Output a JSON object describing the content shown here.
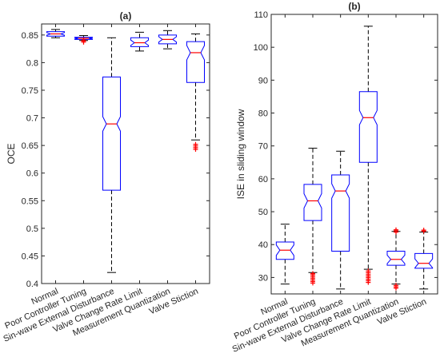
{
  "chart_data": [
    {
      "type": "box",
      "title": "(a)",
      "xlabel": "",
      "ylabel": "OCE",
      "ylim": [
        0.4,
        0.87
      ],
      "yticks": [
        0.4,
        0.45,
        0.5,
        0.55,
        0.6,
        0.65,
        0.7,
        0.75,
        0.8,
        0.85
      ],
      "ytick_labels": [
        "0.4",
        "0.45",
        "0.5",
        "0.55",
        "0.6",
        "0.65",
        "0.7",
        "0.75",
        "0.8",
        "0.85"
      ],
      "notched": true,
      "categories": [
        "Normal",
        "Poor Controller Tuning",
        "Sin-wave External Disturbance",
        "Valve Change Rate Limit",
        "Measurement Quantization",
        "Valve Stiction"
      ],
      "boxes": [
        {
          "whisker_low": 0.845,
          "q1": 0.848,
          "median": 0.852,
          "q3": 0.856,
          "whisker_high": 0.86,
          "outliers": []
        },
        {
          "whisker_low": 0.84,
          "q1": 0.842,
          "median": 0.844,
          "q3": 0.846,
          "whisker_high": 0.849,
          "outliers": [
            0.837,
            0.839,
            0.841
          ]
        },
        {
          "whisker_low": 0.42,
          "q1": 0.569,
          "median": 0.689,
          "q3": 0.774,
          "whisker_high": 0.845,
          "outliers": []
        },
        {
          "whisker_low": 0.821,
          "q1": 0.829,
          "median": 0.836,
          "q3": 0.845,
          "whisker_high": 0.855,
          "outliers": []
        },
        {
          "whisker_low": 0.825,
          "q1": 0.834,
          "median": 0.842,
          "q3": 0.85,
          "whisker_high": 0.858,
          "outliers": []
        },
        {
          "whisker_low": 0.66,
          "q1": 0.764,
          "median": 0.818,
          "q3": 0.838,
          "whisker_high": 0.852,
          "outliers": [
            0.643,
            0.646,
            0.649,
            0.652
          ]
        }
      ],
      "colors": {
        "box": "#0000ff",
        "median": "#ff0000",
        "whisker": "#000000",
        "outlier": "#ff0000"
      }
    },
    {
      "type": "box",
      "title": "(b)",
      "xlabel": "",
      "ylabel": "ISE in sliding window",
      "ylim": [
        25,
        110
      ],
      "yticks": [
        30,
        40,
        50,
        60,
        70,
        80,
        90,
        100,
        110
      ],
      "ytick_labels": [
        "30",
        "40",
        "50",
        "60",
        "70",
        "80",
        "90",
        "100",
        "110"
      ],
      "notched": true,
      "categories": [
        "Normal",
        "Poor Controller Tuning",
        "Sin-wave External Disturbance",
        "Valve Change Rate Limit",
        "Measurement Quantization",
        "Valve Stiction"
      ],
      "boxes": [
        {
          "whisker_low": 28,
          "q1": 35.5,
          "median": 38.3,
          "q3": 40.8,
          "whisker_high": 46.2,
          "outliers": []
        },
        {
          "whisker_low": 31.5,
          "q1": 47.3,
          "median": 53.3,
          "q3": 58.3,
          "whisker_high": 69.3,
          "outliers": [
            28.3,
            28.8,
            29.3,
            29.8,
            30.3,
            30.8,
            31.2
          ]
        },
        {
          "whisker_low": 26.5,
          "q1": 38,
          "median": 56.3,
          "q3": 61.2,
          "whisker_high": 68.4,
          "outliers": []
        },
        {
          "whisker_low": 32.5,
          "q1": 65,
          "median": 78.6,
          "q3": 86.5,
          "whisker_high": 106.4,
          "outliers": [
            28.5,
            29,
            29.5,
            30,
            30.5,
            31,
            31.5,
            32
          ]
        },
        {
          "whisker_low": 28,
          "q1": 33.7,
          "median": 35.5,
          "q3": 38,
          "whisker_high": 44,
          "outliers": [
            26.8,
            27.2,
            27.6,
            43.8,
            44.2,
            44.5
          ]
        },
        {
          "whisker_low": 26.5,
          "q1": 32.8,
          "median": 34.3,
          "q3": 37.3,
          "whisker_high": 43.8,
          "outliers": [
            44.1,
            44.4
          ]
        }
      ],
      "colors": {
        "box": "#0000ff",
        "median": "#ff0000",
        "whisker": "#000000",
        "outlier": "#ff0000"
      }
    }
  ]
}
